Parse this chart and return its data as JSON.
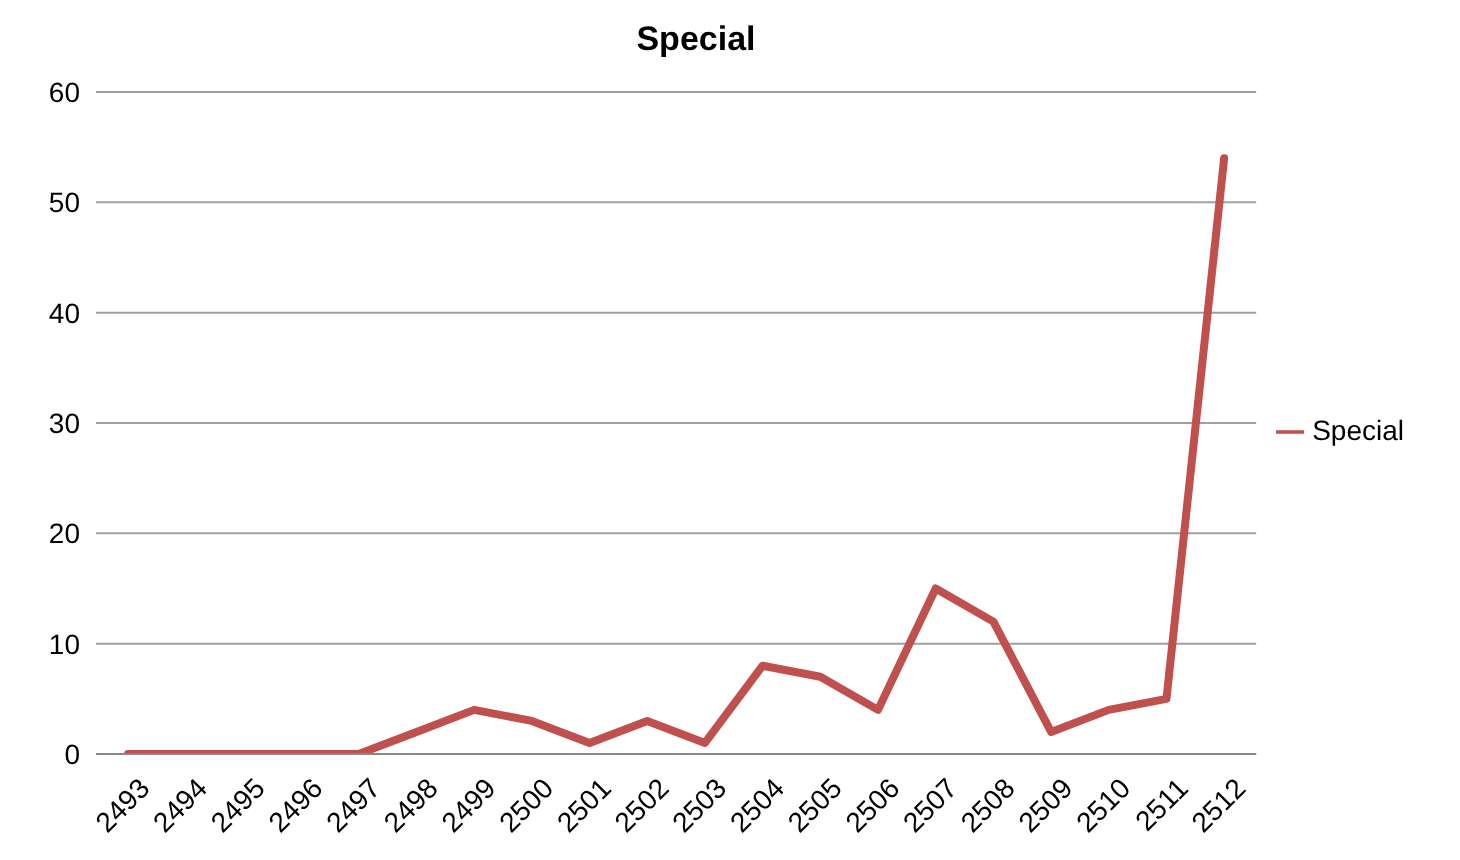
{
  "chart_data": {
    "type": "line",
    "title": "Special",
    "categories": [
      "2493",
      "2494",
      "2495",
      "2496",
      "2497",
      "2498",
      "2499",
      "2500",
      "2501",
      "2502",
      "2503",
      "2504",
      "2505",
      "2506",
      "2507",
      "2508",
      "2509",
      "2510",
      "2511",
      "2512"
    ],
    "series": [
      {
        "name": "Special",
        "color": "#c0504d",
        "values": [
          0,
          0,
          0,
          0,
          0,
          2,
          4,
          3,
          1,
          3,
          1,
          8,
          7,
          4,
          15,
          12,
          2,
          4,
          5,
          54
        ]
      }
    ],
    "ylim": [
      0,
      60
    ],
    "yticks": [
      0,
      10,
      20,
      30,
      40,
      50,
      60
    ],
    "grid": "y",
    "legend": "right",
    "marker": "none",
    "line_style": "solid"
  }
}
